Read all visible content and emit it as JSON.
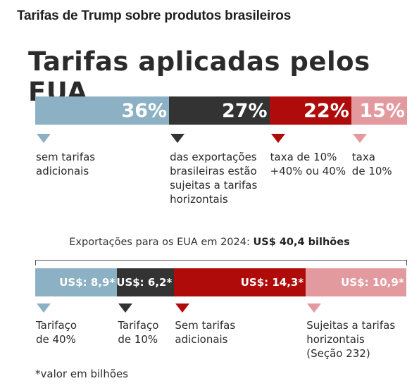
{
  "page_heading": "Tarifas de Trump sobre produtos brasileiros",
  "chart_data": [
    {
      "type": "bar",
      "title": "Tarifas aplicadas pelos EUA",
      "series": [
        {
          "label": "36%",
          "value": 36,
          "color": "#8cb1c4",
          "description": "sem tarifas\nadicionais"
        },
        {
          "label": "27%",
          "value": 27,
          "color": "#333333",
          "description": "das exportações\nbrasileiras estão\nsujeitas a tarifas\nhorizontais"
        },
        {
          "label": "22%",
          "value": 22,
          "color": "#b00b0b",
          "description": "taxa de 10%\n+40% ou 40%"
        },
        {
          "label": "15%",
          "value": 15,
          "color": "#e39a9f",
          "description": "taxa\nde 10%"
        }
      ]
    },
    {
      "type": "bar",
      "title_prefix": "Exportações para os EUA em 2024: ",
      "title_highlight": "US$ 40,4 bilhões",
      "total": 40.4,
      "series": [
        {
          "label": "US$: 8,9*",
          "value": 8.9,
          "color": "#8cb1c4",
          "description": "Tarifaço\nde 40%"
        },
        {
          "label": "US$: 6,2*",
          "value": 6.2,
          "color": "#333333",
          "description": "Tarifaço\nde 10%"
        },
        {
          "label": "US$: 14,3*",
          "value": 14.3,
          "color": "#b00b0b",
          "description": "Sem tarifas\nadicionais"
        },
        {
          "label": "US$: 10,9*",
          "value": 10.9,
          "color": "#e39a9f",
          "description": "Sujeitas a tarifas\nhorizontais\n(Seção 232)"
        }
      ],
      "footnote": "*valor em bilhões"
    }
  ]
}
